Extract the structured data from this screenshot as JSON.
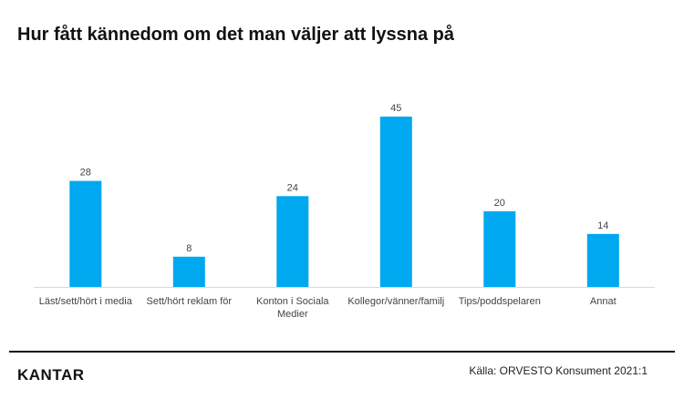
{
  "chart_data": {
    "type": "bar",
    "title": "Hur fått kännedom om det man väljer att lyssna på",
    "categories": [
      [
        "Läst/sett/hört i media"
      ],
      [
        "Sett/hört reklam för"
      ],
      [
        "Konton i Sociala",
        "Medier"
      ],
      [
        "Kollegor/vänner/familj"
      ],
      [
        "Tips/poddspelaren"
      ],
      [
        "Annat"
      ]
    ],
    "values": [
      28,
      8,
      24,
      45,
      20,
      14
    ],
    "xlabel": "",
    "ylabel": "",
    "ylim": [
      0,
      45
    ],
    "grid": false,
    "legend": "none",
    "bar_color": "#00A8F0",
    "axis_color": "#D9D9D9"
  },
  "footer": {
    "logo": "KANTAR",
    "source": "Källa: ORVESTO Konsument 2021:1"
  }
}
